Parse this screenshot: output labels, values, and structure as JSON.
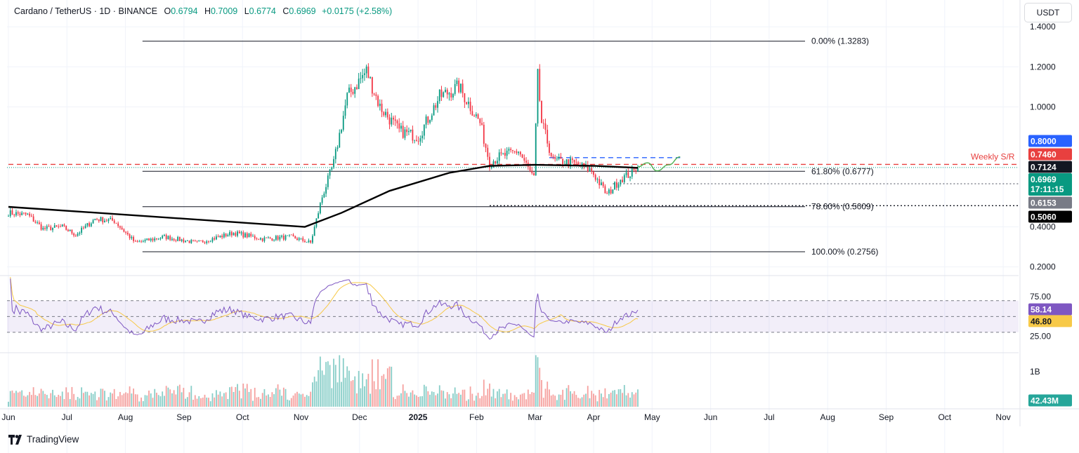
{
  "header": {
    "symbol": "Cardano / TetherUS · 1D · BINANCE",
    "o_label": "O",
    "o": "0.6794",
    "h_label": "H",
    "h": "0.7009",
    "l_label": "L",
    "l": "0.6774",
    "c_label": "C",
    "c": "0.6969",
    "change": "+0.0175 (+2.58%)"
  },
  "quote_currency": "USDT",
  "brand": "TradingView",
  "chart_data": {
    "type": "candlestick",
    "x_labels": [
      "Jun",
      "Jul",
      "Aug",
      "Sep",
      "Oct",
      "Nov",
      "Dec",
      "2025",
      "Feb",
      "Mar",
      "Apr",
      "May",
      "Jun",
      "Jul",
      "Aug",
      "Sep",
      "Oct",
      "Nov"
    ],
    "price_axis": {
      "ticks": [
        "1.4000",
        "1.2000",
        "1.0000",
        "0.4000",
        "0.2000"
      ],
      "ylim": [
        0.16,
        1.52
      ]
    },
    "price_series": {
      "start": "2024-05-31",
      "step_days": 1,
      "anchors": [
        [
          "2024-05-31",
          0.47
        ],
        [
          "2024-06-10",
          0.46
        ],
        [
          "2024-06-18",
          0.39
        ],
        [
          "2024-06-28",
          0.4
        ],
        [
          "2024-07-05",
          0.36
        ],
        [
          "2024-07-15",
          0.44
        ],
        [
          "2024-07-25",
          0.43
        ],
        [
          "2024-08-05",
          0.32
        ],
        [
          "2024-08-20",
          0.35
        ],
        [
          "2024-09-06",
          0.32
        ],
        [
          "2024-09-25",
          0.37
        ],
        [
          "2024-10-10",
          0.34
        ],
        [
          "2024-10-25",
          0.35
        ],
        [
          "2024-11-04",
          0.32
        ],
        [
          "2024-11-10",
          0.55
        ],
        [
          "2024-11-16",
          0.72
        ],
        [
          "2024-11-23",
          1.05
        ],
        [
          "2024-12-03",
          1.18
        ],
        [
          "2024-12-10",
          1.0
        ],
        [
          "2024-12-20",
          0.88
        ],
        [
          "2024-12-30",
          0.85
        ],
        [
          "2025-01-10",
          1.05
        ],
        [
          "2025-01-20",
          1.1
        ],
        [
          "2025-01-31",
          0.92
        ],
        [
          "2025-02-05",
          0.72
        ],
        [
          "2025-02-10",
          0.75
        ],
        [
          "2025-02-20",
          0.78
        ],
        [
          "2025-02-28",
          0.64
        ],
        [
          "2025-03-02",
          1.15
        ],
        [
          "2025-03-04",
          0.92
        ],
        [
          "2025-03-10",
          0.73
        ],
        [
          "2025-03-20",
          0.72
        ],
        [
          "2025-03-30",
          0.68
        ],
        [
          "2025-04-07",
          0.56
        ],
        [
          "2025-04-14",
          0.64
        ],
        [
          "2025-04-22",
          0.6794
        ]
      ],
      "last": {
        "date": "2025-04-23",
        "open": 0.6794,
        "high": 0.7009,
        "low": 0.6774,
        "close": 0.6969
      }
    },
    "moving_average": {
      "name": "",
      "points": [
        [
          "2024-05-31",
          0.5
        ],
        [
          "2024-08-01",
          0.46
        ],
        [
          "2024-10-01",
          0.42
        ],
        [
          "2024-11-01",
          0.4
        ],
        [
          "2024-11-20",
          0.47
        ],
        [
          "2024-12-15",
          0.58
        ],
        [
          "2025-01-15",
          0.67
        ],
        [
          "2025-02-05",
          0.705
        ],
        [
          "2025-03-01",
          0.71
        ],
        [
          "2025-04-01",
          0.705
        ],
        [
          "2025-04-23",
          0.695
        ]
      ]
    },
    "fibonacci": {
      "start": "2024-08-05",
      "end": "2025-01-31",
      "levels": [
        {
          "label": "0.00% (1.3283)",
          "value": 1.3283
        },
        {
          "label": "61.80% (0.6777)",
          "value": 0.6777
        },
        {
          "label": "78.60% (0.5009)",
          "value": 0.5009
        },
        {
          "label": "100.00% (0.2756)",
          "value": 0.2756
        }
      ]
    },
    "horizontal_lines": [
      {
        "value": 0.7124,
        "style": "dashed",
        "color": "#e8403f",
        "label": "Weekly S/R",
        "start": "2024-05-31"
      },
      {
        "value": 0.746,
        "style": "dashed",
        "color": "#2962ff",
        "start": "2025-03-08",
        "end": "2025-05-15"
      },
      {
        "value": 0.6153,
        "style": "dotted",
        "color": "#787b86",
        "start": "2025-04-10"
      },
      {
        "value": 0.506,
        "style": "dotted",
        "color": "#131722",
        "start": "2025-02-05"
      }
    ],
    "projection": {
      "color": "#4caf50",
      "points": [
        [
          "2025-04-23",
          0.7
        ],
        [
          "2025-04-28",
          0.72
        ],
        [
          "2025-05-03",
          0.68
        ],
        [
          "2025-05-09",
          0.71
        ],
        [
          "2025-05-15",
          0.75
        ]
      ]
    },
    "price_tags": [
      {
        "value": 0.8,
        "text": "0.8000",
        "bg": "#2962ff",
        "fg": "#ffffff"
      },
      {
        "value": 0.746,
        "text": "0.7460",
        "bg": "#e8403f",
        "fg": "#ffffff"
      },
      {
        "value": 0.7124,
        "text": "0.7124",
        "bg": "#131722",
        "fg": "#ffffff"
      },
      {
        "value": 0.6969,
        "text": "0.6969",
        "sub": "17:11:15",
        "bg": "#089981",
        "fg": "#ffffff"
      },
      {
        "value": 0.6153,
        "text": "0.6153",
        "bg": "#787b86",
        "fg": "#ffffff"
      },
      {
        "value": 0.506,
        "text": "0.5060",
        "bg": "#000000",
        "fg": "#ffffff"
      }
    ],
    "rsi": {
      "ticks": [
        "75.00",
        "25.00"
      ],
      "ylim": [
        5,
        100
      ],
      "band": [
        30,
        70
      ],
      "mid": 50,
      "last_rsi": 58.14,
      "last_ma": 46.8,
      "rsi_color": "#7e57c2",
      "ma_color": "#f7c948"
    },
    "volume": {
      "ticks": [
        "1B"
      ],
      "last": "42.43M",
      "max": 1500000000,
      "up_color": "#26a69a",
      "down_color": "#ef5350"
    },
    "colors": {
      "up": "#089981",
      "down": "#f23645",
      "ma": "#000000"
    }
  }
}
